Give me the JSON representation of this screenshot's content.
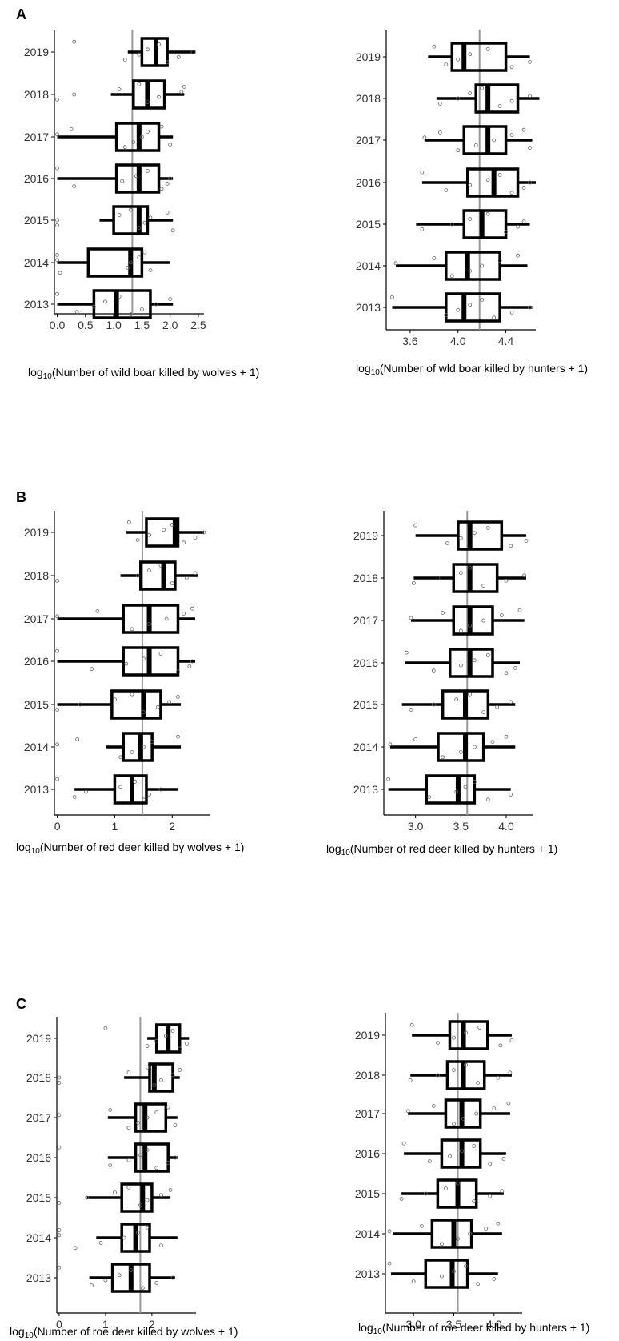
{
  "panels": [
    {
      "letter": "A"
    },
    {
      "letter": "B"
    },
    {
      "letter": "C"
    }
  ],
  "chart_data": [
    {
      "type": "boxplot",
      "panel": "A",
      "orientation": "horizontal",
      "xlabel_prefix": "log",
      "xlabel_sub": "10",
      "xlabel_rest": "(Number of wild boar killed by wolves + 1)",
      "categories": [
        "2013",
        "2014",
        "2015",
        "2016",
        "2017",
        "2018",
        "2019"
      ],
      "xlim": [
        -0.05,
        2.6
      ],
      "xticks": [
        0.0,
        0.5,
        1.0,
        1.5,
        2.0,
        2.5
      ],
      "xtick_labels": [
        "0.0",
        "0.5",
        "1.0",
        "1.5",
        "2.0",
        "2.5"
      ],
      "reference_line": 1.33,
      "boxes": [
        {
          "year": "2013",
          "min": 0.0,
          "q1": 0.65,
          "median": 1.05,
          "q3": 1.65,
          "max": 2.05,
          "points": [
            0.0,
            0.35,
            0.65,
            0.85,
            1.1,
            1.3,
            1.5,
            1.75,
            2.0
          ]
        },
        {
          "year": "2014",
          "min": 0.0,
          "q1": 0.55,
          "median": 1.3,
          "q3": 1.5,
          "max": 2.0,
          "points": [
            0.0,
            0.0,
            0.05,
            1.25,
            1.3,
            1.45,
            1.55,
            1.65
          ]
        },
        {
          "year": "2015",
          "min": 0.75,
          "q1": 1.0,
          "median": 1.45,
          "q3": 1.6,
          "max": 2.05,
          "points": [
            0.0,
            0.0,
            1.1,
            1.3,
            1.45,
            1.55,
            1.65,
            1.95,
            2.05
          ]
        },
        {
          "year": "2016",
          "min": 0.0,
          "q1": 1.05,
          "median": 1.45,
          "q3": 1.8,
          "max": 2.05,
          "points": [
            0.0,
            0.3,
            1.15,
            1.4,
            1.6,
            1.85,
            1.95,
            2.0
          ]
        },
        {
          "year": "2017",
          "min": 0.0,
          "q1": 1.05,
          "median": 1.45,
          "q3": 1.8,
          "max": 2.05,
          "points": [
            0.0,
            0.25,
            1.2,
            1.35,
            1.5,
            1.6,
            1.85,
            2.0
          ]
        },
        {
          "year": "2018",
          "min": 0.95,
          "q1": 1.35,
          "median": 1.6,
          "q3": 1.9,
          "max": 2.25,
          "points": [
            0.0,
            0.3,
            1.1,
            1.45,
            1.6,
            1.8,
            2.2,
            2.25
          ]
        },
        {
          "year": "2019",
          "min": 1.25,
          "q1": 1.5,
          "median": 1.75,
          "q3": 1.95,
          "max": 2.45,
          "points": [
            0.3,
            1.2,
            1.45,
            1.6,
            1.8,
            1.95,
            2.15,
            2.4
          ]
        }
      ]
    },
    {
      "type": "boxplot",
      "panel": "A",
      "orientation": "horizontal",
      "xlabel_prefix": "log",
      "xlabel_sub": "10",
      "xlabel_rest": "(Number of wld boar killed by hunters + 1)",
      "categories": [
        "2013",
        "2014",
        "2015",
        "2016",
        "2017",
        "2018",
        "2019"
      ],
      "xlim": [
        3.4,
        4.65
      ],
      "xticks": [
        3.6,
        4.0,
        4.4
      ],
      "xtick_labels": [
        "3.6",
        "4.0",
        "4.4"
      ],
      "reference_line": 4.18,
      "boxes": [
        {
          "year": "2013",
          "min": 3.45,
          "q1": 3.9,
          "median": 4.05,
          "q3": 4.35,
          "max": 4.62,
          "points": [
            3.45,
            3.9,
            4.0,
            4.1,
            4.2,
            4.3,
            4.45,
            4.6
          ]
        },
        {
          "year": "2014",
          "min": 3.48,
          "q1": 3.9,
          "median": 4.08,
          "q3": 4.35,
          "max": 4.58,
          "points": [
            3.48,
            3.8,
            3.95,
            4.1,
            4.2,
            4.35,
            4.5
          ]
        },
        {
          "year": "2015",
          "min": 3.65,
          "q1": 4.05,
          "median": 4.2,
          "q3": 4.4,
          "max": 4.6,
          "points": [
            3.7,
            3.95,
            4.1,
            4.25,
            4.4,
            4.5,
            4.55
          ]
        },
        {
          "year": "2016",
          "min": 3.7,
          "q1": 4.08,
          "median": 4.3,
          "q3": 4.5,
          "max": 4.65,
          "points": [
            3.7,
            3.9,
            4.1,
            4.25,
            4.35,
            4.45,
            4.55,
            4.6
          ]
        },
        {
          "year": "2017",
          "min": 3.72,
          "q1": 4.05,
          "median": 4.25,
          "q3": 4.4,
          "max": 4.62,
          "points": [
            3.72,
            3.85,
            4.0,
            4.15,
            4.3,
            4.45,
            4.55,
            4.6
          ]
        },
        {
          "year": "2018",
          "min": 3.82,
          "q1": 4.15,
          "median": 4.25,
          "q3": 4.5,
          "max": 4.68,
          "points": [
            3.85,
            4.0,
            4.1,
            4.2,
            4.35,
            4.45,
            4.6
          ]
        },
        {
          "year": "2019",
          "min": 3.75,
          "q1": 3.95,
          "median": 4.05,
          "q3": 4.4,
          "max": 4.6,
          "points": [
            3.8,
            3.9,
            4.0,
            4.1,
            4.25,
            4.45,
            4.6
          ]
        }
      ]
    },
    {
      "type": "boxplot",
      "panel": "B",
      "orientation": "horizontal",
      "xlabel_prefix": "log",
      "xlabel_sub": "10",
      "xlabel_rest": "(Number of red deer killed by wolves + 1)",
      "categories": [
        "2013",
        "2014",
        "2015",
        "2016",
        "2017",
        "2018",
        "2019"
      ],
      "xlim": [
        -0.05,
        2.65
      ],
      "xticks": [
        0,
        1,
        2
      ],
      "xtick_labels": [
        "0",
        "1",
        "2"
      ],
      "reference_line": 1.48,
      "boxes": [
        {
          "year": "2013",
          "min": 0.3,
          "q1": 1.0,
          "median": 1.3,
          "q3": 1.55,
          "max": 2.1,
          "points": [
            0.0,
            0.3,
            0.5,
            1.1,
            1.35,
            1.5,
            1.6,
            1.8
          ]
        },
        {
          "year": "2014",
          "min": 0.85,
          "q1": 1.15,
          "median": 1.45,
          "q3": 1.65,
          "max": 2.15,
          "points": [
            0.0,
            0.35,
            1.1,
            1.3,
            1.5,
            1.65,
            2.1
          ]
        },
        {
          "year": "2015",
          "min": 0.0,
          "q1": 0.95,
          "median": 1.5,
          "q3": 1.8,
          "max": 2.15,
          "points": [
            0.0,
            0.4,
            1.0,
            1.3,
            1.5,
            1.75,
            1.95,
            2.1
          ]
        },
        {
          "year": "2016",
          "min": 0.0,
          "q1": 1.15,
          "median": 1.6,
          "q3": 2.1,
          "max": 2.4,
          "points": [
            0.0,
            0.6,
            1.2,
            1.5,
            1.8,
            2.1,
            2.3,
            2.35
          ]
        },
        {
          "year": "2017",
          "min": 0.0,
          "q1": 1.15,
          "median": 1.6,
          "q3": 2.1,
          "max": 2.4,
          "points": [
            0.0,
            0.7,
            1.3,
            1.6,
            1.9,
            2.2,
            2.35
          ]
        },
        {
          "year": "2018",
          "min": 1.1,
          "q1": 1.45,
          "median": 1.85,
          "q3": 2.05,
          "max": 2.45,
          "points": [
            0.0,
            1.4,
            1.6,
            1.8,
            2.0,
            2.25,
            2.4
          ]
        },
        {
          "year": "2019",
          "min": 1.2,
          "q1": 1.55,
          "median": 2.05,
          "q3": 2.1,
          "max": 2.55,
          "points": [
            1.25,
            1.4,
            1.6,
            1.85,
            2.0,
            2.2,
            2.4,
            2.55
          ]
        }
      ]
    },
    {
      "type": "boxplot",
      "panel": "B",
      "orientation": "horizontal",
      "xlabel_prefix": "log",
      "xlabel_sub": "10",
      "xlabel_rest": "(Number of red deer killed by hunters + 1)",
      "categories": [
        "2013",
        "2014",
        "2015",
        "2016",
        "2017",
        "2018",
        "2019"
      ],
      "xlim": [
        2.65,
        4.3
      ],
      "xticks": [
        3.0,
        3.5,
        4.0
      ],
      "xtick_labels": [
        "3.0",
        "3.5",
        "4.0"
      ],
      "reference_line": 3.57,
      "boxes": [
        {
          "year": "2013",
          "min": 2.7,
          "q1": 3.12,
          "median": 3.47,
          "q3": 3.65,
          "max": 4.05,
          "points": [
            2.7,
            3.15,
            3.45,
            3.55,
            3.65,
            3.8,
            4.05
          ]
        },
        {
          "year": "2014",
          "min": 2.72,
          "q1": 3.25,
          "median": 3.55,
          "q3": 3.75,
          "max": 4.1,
          "points": [
            2.72,
            3.0,
            3.3,
            3.5,
            3.65,
            3.85,
            4.0
          ]
        },
        {
          "year": "2015",
          "min": 2.85,
          "q1": 3.3,
          "median": 3.55,
          "q3": 3.8,
          "max": 4.1,
          "points": [
            2.95,
            3.2,
            3.45,
            3.6,
            3.75,
            3.9,
            4.05
          ]
        },
        {
          "year": "2016",
          "min": 2.88,
          "q1": 3.38,
          "median": 3.6,
          "q3": 3.85,
          "max": 4.15,
          "points": [
            2.9,
            3.2,
            3.5,
            3.65,
            3.8,
            4.0,
            4.1
          ]
        },
        {
          "year": "2017",
          "min": 2.95,
          "q1": 3.42,
          "median": 3.6,
          "q3": 3.85,
          "max": 4.2,
          "points": [
            2.95,
            3.3,
            3.5,
            3.6,
            3.75,
            3.95,
            4.15
          ]
        },
        {
          "year": "2018",
          "min": 2.98,
          "q1": 3.42,
          "median": 3.6,
          "q3": 3.9,
          "max": 4.22,
          "points": [
            2.98,
            3.25,
            3.5,
            3.6,
            3.75,
            4.0,
            4.2
          ]
        },
        {
          "year": "2019",
          "min": 3.0,
          "q1": 3.47,
          "median": 3.6,
          "q3": 3.95,
          "max": 4.22,
          "points": [
            3.0,
            3.35,
            3.5,
            3.65,
            3.8,
            4.05,
            4.22
          ]
        }
      ]
    },
    {
      "type": "boxplot",
      "panel": "C",
      "orientation": "horizontal",
      "xlabel_prefix": "log",
      "xlabel_sub": "10",
      "xlabel_rest": "(Number of roe deer killed by wolves + 1)",
      "categories": [
        "2013",
        "2014",
        "2015",
        "2016",
        "2017",
        "2018",
        "2019"
      ],
      "xlim": [
        -0.05,
        2.95
      ],
      "xticks": [
        0,
        1,
        2
      ],
      "xtick_labels": [
        "0",
        "1",
        "2"
      ],
      "reference_line": 1.75,
      "boxes": [
        {
          "year": "2013",
          "min": 0.65,
          "q1": 1.15,
          "median": 1.55,
          "q3": 1.95,
          "max": 2.5,
          "points": [
            0.0,
            0.7,
            1.0,
            1.3,
            1.55,
            1.8,
            2.1,
            2.45
          ]
        },
        {
          "year": "2014",
          "min": 0.8,
          "q1": 1.35,
          "median": 1.65,
          "q3": 1.95,
          "max": 2.55,
          "points": [
            0.0,
            0.0,
            0.35,
            0.9,
            1.4,
            1.7,
            1.9,
            2.2
          ]
        },
        {
          "year": "2015",
          "min": 0.6,
          "q1": 1.35,
          "median": 1.8,
          "q3": 2.0,
          "max": 2.4,
          "points": [
            0.0,
            0.6,
            1.2,
            1.5,
            1.75,
            1.9,
            2.2,
            2.4
          ]
        },
        {
          "year": "2016",
          "min": 1.05,
          "q1": 1.65,
          "median": 1.85,
          "q3": 2.35,
          "max": 2.55,
          "points": [
            0.0,
            1.1,
            1.5,
            1.75,
            1.9,
            2.1,
            2.35,
            2.5
          ]
        },
        {
          "year": "2017",
          "min": 1.05,
          "q1": 1.65,
          "median": 1.85,
          "q3": 2.3,
          "max": 2.55,
          "points": [
            0.0,
            1.1,
            1.5,
            1.7,
            1.9,
            2.1,
            2.35,
            2.5
          ]
        },
        {
          "year": "2018",
          "min": 1.4,
          "q1": 1.95,
          "median": 2.05,
          "q3": 2.45,
          "max": 2.6,
          "points": [
            0.0,
            0.0,
            1.5,
            1.9,
            2.05,
            2.2,
            2.45,
            2.6
          ]
        },
        {
          "year": "2019",
          "min": 1.9,
          "q1": 2.1,
          "median": 2.35,
          "q3": 2.6,
          "max": 2.8,
          "points": [
            1.0,
            1.9,
            2.1,
            2.3,
            2.45,
            2.6,
            2.75
          ]
        }
      ]
    },
    {
      "type": "boxplot",
      "panel": "C",
      "orientation": "horizontal",
      "xlabel_prefix": "log",
      "xlabel_sub": "10",
      "xlabel_rest": "(Number of roe deer killed by hunters + 1)",
      "categories": [
        "2013",
        "2014",
        "2015",
        "2016",
        "2017",
        "2018",
        "2019"
      ],
      "xlim": [
        2.65,
        4.35
      ],
      "xticks": [
        3.0,
        3.5,
        4.0
      ],
      "xtick_labels": [
        "3.0",
        "3.5",
        "4.0"
      ],
      "reference_line": 3.55,
      "boxes": [
        {
          "year": "2013",
          "min": 2.72,
          "q1": 3.15,
          "median": 3.48,
          "q3": 3.67,
          "max": 4.05,
          "points": [
            2.7,
            3.0,
            3.35,
            3.5,
            3.65,
            3.8,
            4.0
          ]
        },
        {
          "year": "2014",
          "min": 2.75,
          "q1": 3.23,
          "median": 3.5,
          "q3": 3.72,
          "max": 4.1,
          "points": [
            2.7,
            3.1,
            3.35,
            3.55,
            3.7,
            3.9,
            4.05
          ]
        },
        {
          "year": "2015",
          "min": 2.85,
          "q1": 3.3,
          "median": 3.55,
          "q3": 3.78,
          "max": 4.12,
          "points": [
            2.85,
            3.15,
            3.4,
            3.55,
            3.75,
            3.95,
            4.1
          ]
        },
        {
          "year": "2016",
          "min": 2.88,
          "q1": 3.35,
          "median": 3.6,
          "q3": 3.83,
          "max": 4.15,
          "points": [
            2.88,
            3.2,
            3.45,
            3.6,
            3.75,
            3.95,
            4.12
          ]
        },
        {
          "year": "2017",
          "min": 2.93,
          "q1": 3.4,
          "median": 3.6,
          "q3": 3.83,
          "max": 4.2,
          "points": [
            2.93,
            3.25,
            3.5,
            3.62,
            3.78,
            4.0,
            4.18
          ]
        },
        {
          "year": "2018",
          "min": 2.96,
          "q1": 3.42,
          "median": 3.62,
          "q3": 3.88,
          "max": 4.22,
          "points": [
            2.96,
            3.3,
            3.5,
            3.65,
            3.8,
            4.05,
            4.2
          ]
        },
        {
          "year": "2019",
          "min": 2.98,
          "q1": 3.45,
          "median": 3.62,
          "q3": 3.92,
          "max": 4.22,
          "points": [
            2.98,
            3.3,
            3.5,
            3.65,
            3.82,
            4.08,
            4.22
          ]
        }
      ]
    }
  ]
}
